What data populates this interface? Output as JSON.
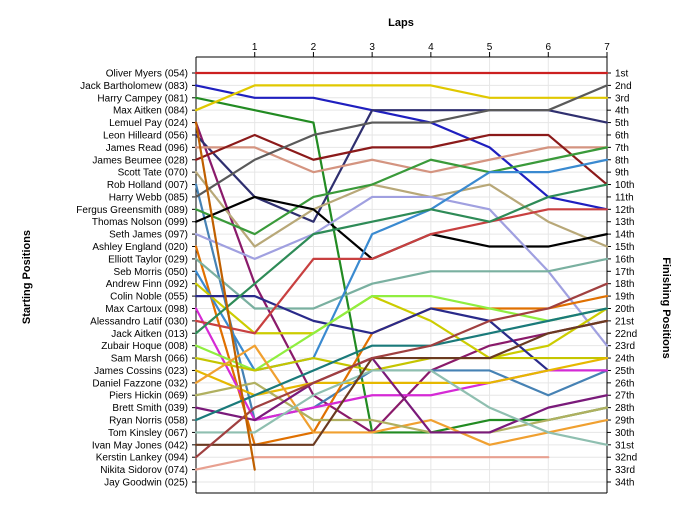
{
  "chart_data": {
    "type": "line",
    "xlabel": "Laps",
    "ylabel_left": "Starting Positions",
    "ylabel_right": "Finishing Positions",
    "x_ticks": [
      1,
      2,
      3,
      4,
      5,
      6,
      7
    ],
    "xlim": [
      0,
      7
    ],
    "ylim": [
      1,
      34
    ],
    "grid": true,
    "left_labels": [
      "Oliver Myers (054)",
      "Jack Bartholomew (083)",
      "Harry Campey (081)",
      "Max Aitken (084)",
      "Lemuel Pay (024)",
      "Leon Hilleard (056)",
      "James Read (096)",
      "James Beumee (028)",
      "Scott Tate (070)",
      "Rob Holland (007)",
      "Harry Webb (085)",
      "Fergus Greensmith (089)",
      "Thomas Nolson (099)",
      "Seth James (097)",
      "Ashley England (020)",
      "Elliott Taylor (029)",
      "Seb Morris (050)",
      "Andrew Finn (092)",
      "Colin Noble (055)",
      "Max Cartoux (098)",
      "Alessandro Latif (030)",
      "Jack Aitken (013)",
      "Zubair Hoque (008)",
      "Sam Marsh (066)",
      "James Cossins (023)",
      "Daniel Fazzone (032)",
      "Piers Hickin (069)",
      "Brett Smith (039)",
      "Ryan Norris (058)",
      "Tom Kinsley (067)",
      "Ivan May Jones (042)",
      "Kerstin Lankey (094)",
      "Nikita Sidorov (074)",
      "Jay Goodwin (025)"
    ],
    "right_labels": [
      "1st",
      "2nd",
      "3rd",
      "4th",
      "5th",
      "6th",
      "7th",
      "8th",
      "9th",
      "10th",
      "11th",
      "12th",
      "13th",
      "14th",
      "15th",
      "16th",
      "17th",
      "18th",
      "19th",
      "20th",
      "21st",
      "22nd",
      "23rd",
      "24th",
      "25th",
      "26th",
      "27th",
      "28th",
      "29th",
      "30th",
      "31st",
      "32nd",
      "33rd",
      "34th"
    ],
    "series": [
      {
        "color": "#cc2020",
        "values": [
          1,
          1,
          1,
          1,
          1,
          1,
          1,
          1
        ]
      },
      {
        "color": "#1f1fbf",
        "values": [
          2,
          3,
          3,
          4,
          5,
          7,
          11,
          12
        ]
      },
      {
        "color": "#228b22",
        "values": [
          3,
          4,
          5,
          30,
          30,
          29,
          29,
          28
        ]
      },
      {
        "color": "#e0c800",
        "values": [
          4,
          2,
          2,
          2,
          2,
          3,
          3,
          3
        ]
      },
      {
        "color": "#8a1a6a",
        "values": [
          5,
          18,
          27,
          30,
          25,
          23,
          22,
          21
        ]
      },
      {
        "color": "#2f2f6f",
        "values": [
          6,
          11,
          13,
          4,
          4,
          4,
          4,
          5
        ]
      },
      {
        "color": "#d49480",
        "values": [
          7,
          7,
          9,
          8,
          9,
          8,
          7,
          7
        ]
      },
      {
        "color": "#8b1a1a",
        "values": [
          8,
          6,
          8,
          7,
          7,
          6,
          6,
          10
        ]
      },
      {
        "color": "#b8a878",
        "values": [
          9,
          15,
          12,
          10,
          11,
          10,
          13,
          15
        ]
      },
      {
        "color": "#4682b4",
        "values": [
          10,
          29,
          28,
          25,
          25,
          25,
          27,
          25
        ]
      },
      {
        "color": "#5a5a5a",
        "values": [
          11,
          8,
          6,
          5,
          5,
          4,
          4,
          2
        ]
      },
      {
        "color": "#3a9a3a",
        "values": [
          12,
          14,
          11,
          10,
          8,
          9,
          8,
          7
        ]
      },
      {
        "color": "#000000",
        "values": [
          13,
          11,
          12,
          16,
          14,
          15,
          15,
          14
        ]
      },
      {
        "color": "#a0a0e0",
        "values": [
          14,
          16,
          14,
          11,
          11,
          12,
          17,
          23
        ]
      },
      {
        "color": "#e07000",
        "values": [
          15,
          31,
          30,
          22,
          20,
          20,
          20,
          19
        ]
      },
      {
        "color": "#7ab0a0",
        "values": [
          16,
          20,
          20,
          18,
          17,
          17,
          17,
          16
        ]
      },
      {
        "color": "#3a8ad0",
        "values": [
          17,
          25,
          24,
          14,
          12,
          9,
          9,
          8
        ]
      },
      {
        "color": "#cccc00",
        "values": [
          18,
          22,
          22,
          19,
          21,
          24,
          23,
          20
        ]
      },
      {
        "color": "#2a2a8a",
        "values": [
          19,
          19,
          21,
          22,
          20,
          21,
          25,
          25
        ]
      },
      {
        "color": "#d52ad5",
        "values": [
          20,
          29,
          28,
          27,
          27,
          26,
          25,
          25
        ]
      },
      {
        "color": "#c84040",
        "values": [
          21,
          22,
          16,
          16,
          14,
          13,
          12,
          12
        ]
      },
      {
        "color": "#2e8b57",
        "values": [
          22,
          18,
          14,
          13,
          12,
          13,
          11,
          10
        ]
      },
      {
        "color": "#90ee40",
        "values": [
          23,
          25,
          22,
          19,
          19,
          20,
          21,
          20
        ]
      },
      {
        "color": "#c5c500",
        "values": [
          24,
          25,
          24,
          25,
          24,
          24,
          24,
          24
        ]
      },
      {
        "color": "#e6b800",
        "values": [
          25,
          27,
          26,
          26,
          26,
          26,
          25,
          24
        ]
      },
      {
        "color": "#f0a030",
        "values": [
          26,
          23,
          30,
          30,
          29,
          31,
          30,
          29
        ]
      },
      {
        "color": "#b0b060",
        "values": [
          27,
          26,
          29,
          29,
          30,
          30,
          29,
          28
        ]
      },
      {
        "color": "#7a1a7a",
        "values": [
          28,
          29,
          26,
          24,
          30,
          30,
          28,
          27
        ]
      },
      {
        "color": "#1a7a7a",
        "values": [
          29,
          27,
          25,
          23,
          23,
          22,
          21,
          20
        ]
      },
      {
        "color": "#8fbfb0",
        "values": [
          30,
          30,
          27,
          25,
          25,
          28,
          30,
          31
        ]
      },
      {
        "color": "#6b3a20",
        "values": [
          31,
          31,
          31,
          24,
          24,
          24,
          22,
          21
        ]
      },
      {
        "color": "#a04040",
        "values": [
          32,
          28,
          26,
          24,
          23,
          21,
          20,
          18
        ]
      },
      {
        "color": "#e8a090",
        "values": [
          33,
          32,
          32,
          32,
          32,
          32,
          32
        ]
      },
      {
        "color": "#c06000",
        "values": [
          5,
          33
        ]
      }
    ]
  }
}
